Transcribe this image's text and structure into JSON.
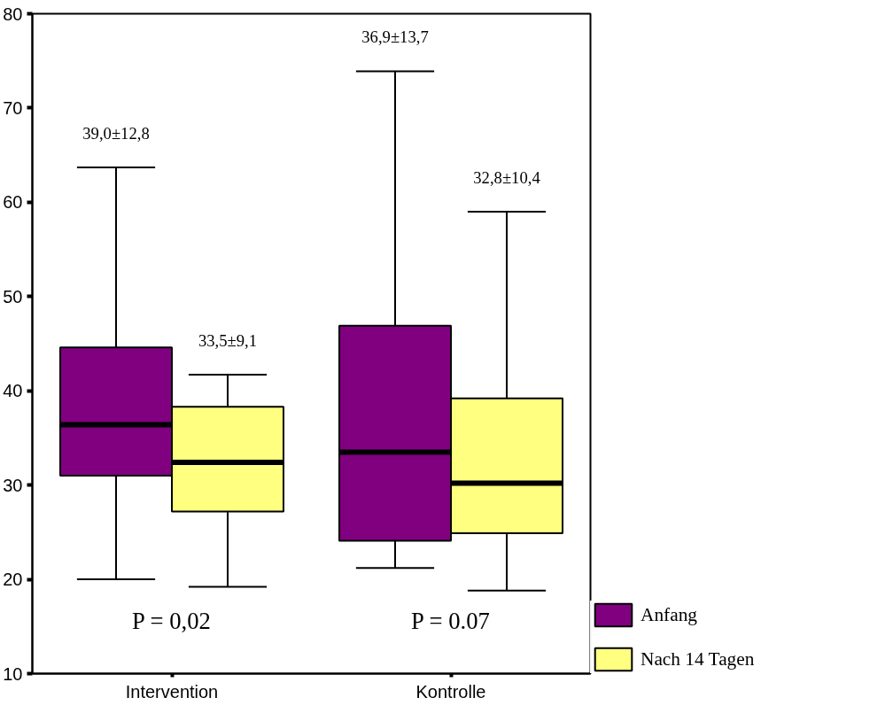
{
  "chart_data": {
    "type": "box",
    "categories": [
      "Intervention",
      "Kontrolle"
    ],
    "series": [
      {
        "name": "Anfang",
        "color": "#800080",
        "boxes": [
          {
            "low": 20.0,
            "q1": 31.0,
            "median": 36.4,
            "q3": 44.6,
            "high": 63.7
          },
          {
            "low": 21.2,
            "q1": 24.1,
            "median": 33.5,
            "q3": 46.9,
            "high": 73.9
          }
        ]
      },
      {
        "name": "Nach 14 Tagen",
        "color": "#ffff80",
        "boxes": [
          {
            "low": 19.2,
            "q1": 27.2,
            "median": 32.4,
            "q3": 38.3,
            "high": 41.7
          },
          {
            "low": 18.8,
            "q1": 24.9,
            "median": 30.2,
            "q3": 39.2,
            "high": 59.0
          }
        ]
      }
    ],
    "ylim": [
      10,
      80
    ],
    "yticks": [
      10,
      20,
      30,
      40,
      50,
      60,
      70,
      80
    ],
    "grid": false,
    "legend": "bottom right",
    "annotations": [
      "39,0±12,8",
      "33,5±9,1",
      "36,9±13,7",
      "32,8±10,4",
      "P = 0,02",
      "P = 0.07"
    ]
  }
}
